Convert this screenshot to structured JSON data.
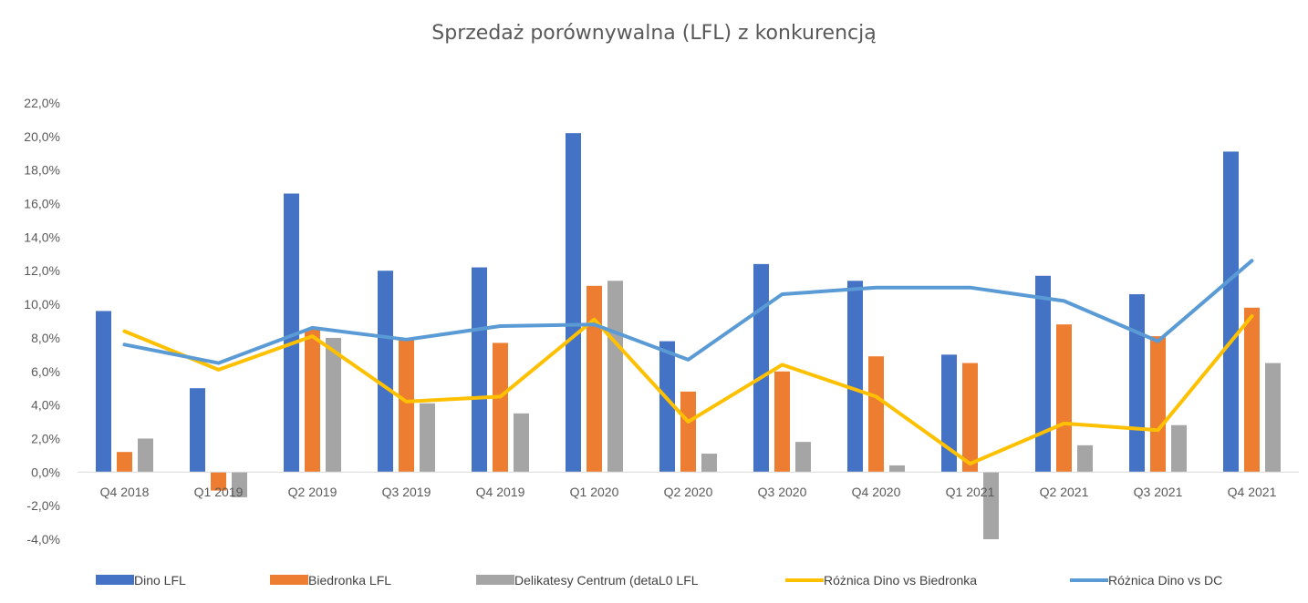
{
  "chart_data": {
    "type": "bar",
    "title": "Sprzedaż porównywalna (LFL) z konkurencją",
    "categories": [
      "Q4 2018",
      "Q1 2019",
      "Q2 2019",
      "Q3 2019",
      "Q4 2019",
      "Q1 2020",
      "Q2 2020",
      "Q3 2020",
      "Q4 2020",
      "Q1 2021",
      "Q2 2021",
      "Q3 2021",
      "Q4 2021"
    ],
    "ylim": [
      -4,
      22
    ],
    "yticks": [
      -4,
      -2,
      0,
      2,
      4,
      6,
      8,
      10,
      12,
      14,
      16,
      18,
      20,
      22
    ],
    "ytick_labels": [
      "-4,0%",
      "-2,0%",
      "0,0%",
      "2,0%",
      "4,0%",
      "6,0%",
      "8,0%",
      "10,0%",
      "12,0%",
      "14,0%",
      "16,0%",
      "18,0%",
      "20,0%",
      "22,0%"
    ],
    "grid": false,
    "legend_position": "bottom",
    "series": [
      {
        "name": "Dino LFL",
        "kind": "bar",
        "color": "#4472C4",
        "values": [
          9.6,
          5.0,
          16.6,
          12.0,
          12.2,
          20.2,
          7.8,
          12.4,
          11.4,
          7.0,
          11.7,
          10.6,
          19.1
        ]
      },
      {
        "name": "Biedronka LFL",
        "kind": "bar",
        "color": "#ED7D31",
        "values": [
          1.2,
          -1.1,
          8.5,
          7.9,
          7.7,
          11.1,
          4.8,
          6.0,
          6.9,
          6.5,
          8.8,
          8.1,
          9.8
        ]
      },
      {
        "name": "Delikatesy Centrum (detaL0 LFL",
        "kind": "bar",
        "color": "#A5A5A5",
        "values": [
          2.0,
          -1.5,
          8.0,
          4.1,
          3.5,
          11.4,
          1.1,
          1.8,
          0.4,
          -4.0,
          1.6,
          2.8,
          6.5
        ]
      },
      {
        "name": "Różnica Dino vs Biedronka",
        "kind": "line",
        "color": "#FFC000",
        "values": [
          8.4,
          6.1,
          8.1,
          4.2,
          4.5,
          9.1,
          3.0,
          6.4,
          4.5,
          0.5,
          2.9,
          2.5,
          9.3
        ]
      },
      {
        "name": "Różnica Dino vs DC",
        "kind": "line",
        "color": "#5B9BD5",
        "values": [
          7.6,
          6.5,
          8.6,
          7.9,
          8.7,
          8.8,
          6.7,
          10.6,
          11.0,
          11.0,
          10.2,
          7.8,
          12.6
        ]
      }
    ]
  }
}
